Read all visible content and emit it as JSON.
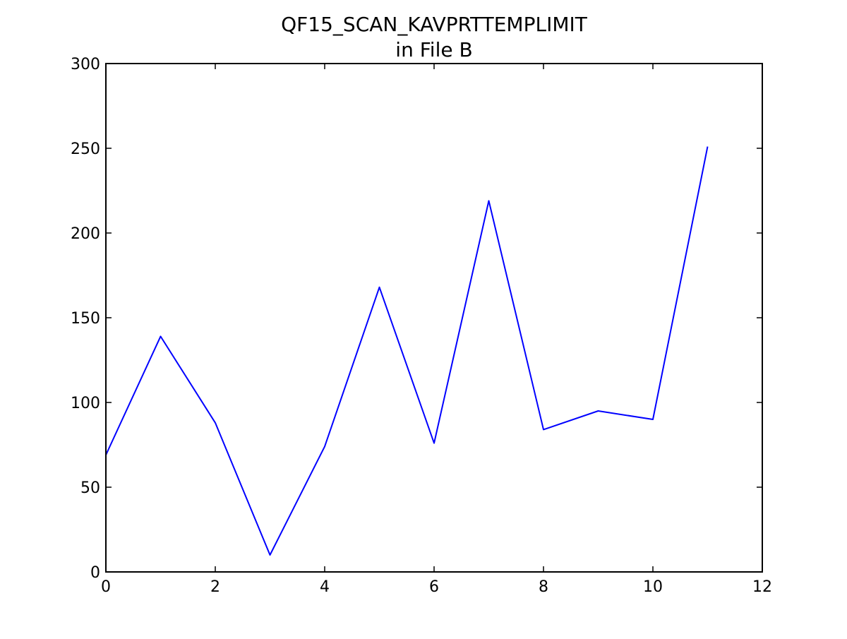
{
  "chart_data": {
    "type": "line",
    "title": "QF15_SCAN_KAVPRTTEMPLIMIT",
    "subtitle": "in File B",
    "xlabel": "",
    "ylabel": "",
    "xlim": [
      0,
      12
    ],
    "ylim": [
      0,
      300
    ],
    "xticks": [
      0,
      2,
      4,
      6,
      8,
      10,
      12
    ],
    "yticks": [
      0,
      50,
      100,
      150,
      200,
      250,
      300
    ],
    "grid": false,
    "series": [
      {
        "color": "#0000ff",
        "x": [
          0,
          1,
          2,
          3,
          4,
          5,
          6,
          7,
          8,
          9,
          10,
          11
        ],
        "y": [
          69,
          139,
          88,
          10,
          74,
          168,
          76,
          219,
          84,
          95,
          90,
          251
        ]
      }
    ]
  }
}
